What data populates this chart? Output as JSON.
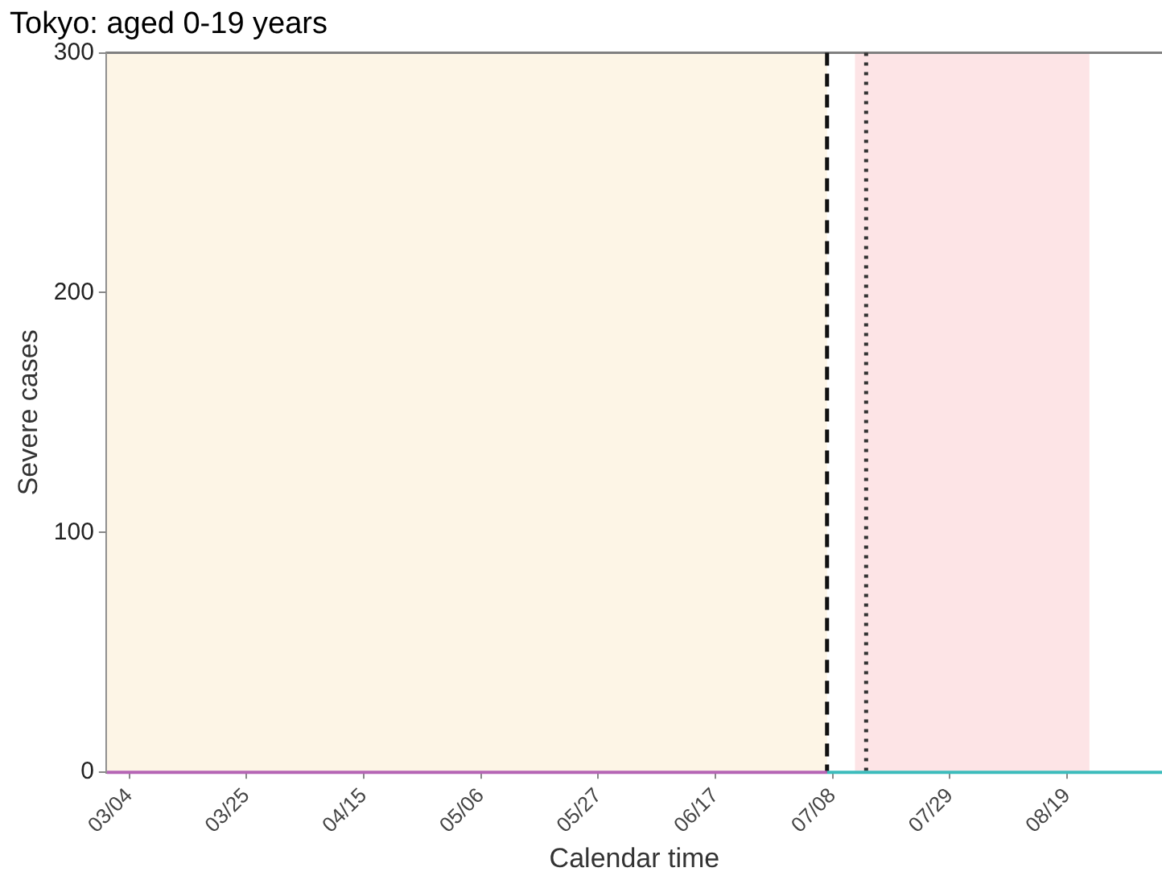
{
  "chart_data": {
    "type": "line",
    "title": "Tokyo: aged 0-19 years",
    "xlabel": "Calendar time",
    "ylabel": "Severe cases",
    "series": [
      {
        "color": "#b565b5",
        "x": [
          "--02-29",
          "--07-07"
        ],
        "values": [
          0,
          0
        ]
      },
      {
        "color": "#3cbcbc",
        "x": [
          "--07-07",
          "--09-05"
        ],
        "values": [
          0,
          0
        ]
      }
    ],
    "xlim": [
      "--02-29",
      "--09-05"
    ],
    "xticks": [
      {
        "value": "--03-04",
        "label": "03/04"
      },
      {
        "value": "--03-25",
        "label": "03/25"
      },
      {
        "value": "--04-15",
        "label": "04/15"
      },
      {
        "value": "--05-06",
        "label": "05/06"
      },
      {
        "value": "--05-27",
        "label": "05/27"
      },
      {
        "value": "--06-17",
        "label": "06/17"
      },
      {
        "value": "--07-08",
        "label": "07/08"
      },
      {
        "value": "--07-29",
        "label": "07/29"
      },
      {
        "value": "--08-19",
        "label": "08/19"
      }
    ],
    "ylim": [
      0,
      300
    ],
    "yticks": [
      0,
      100,
      200,
      300
    ],
    "bands": [
      {
        "axis": "x",
        "from": "--02-29",
        "to": "--07-07",
        "color": "#fdf5e6"
      },
      {
        "axis": "x",
        "from": "--07-12",
        "to": "--08-23",
        "color": "#fde4e6"
      }
    ],
    "ref_lines": [
      {
        "axis": "x",
        "value": "--07-07",
        "line_style": "dashed",
        "color": "#111111"
      },
      {
        "axis": "x",
        "value": "--07-14",
        "line_style": "dotted",
        "color": "#333333"
      }
    ],
    "grid": false,
    "legend": false,
    "marker": "none",
    "line_style": "solid"
  }
}
